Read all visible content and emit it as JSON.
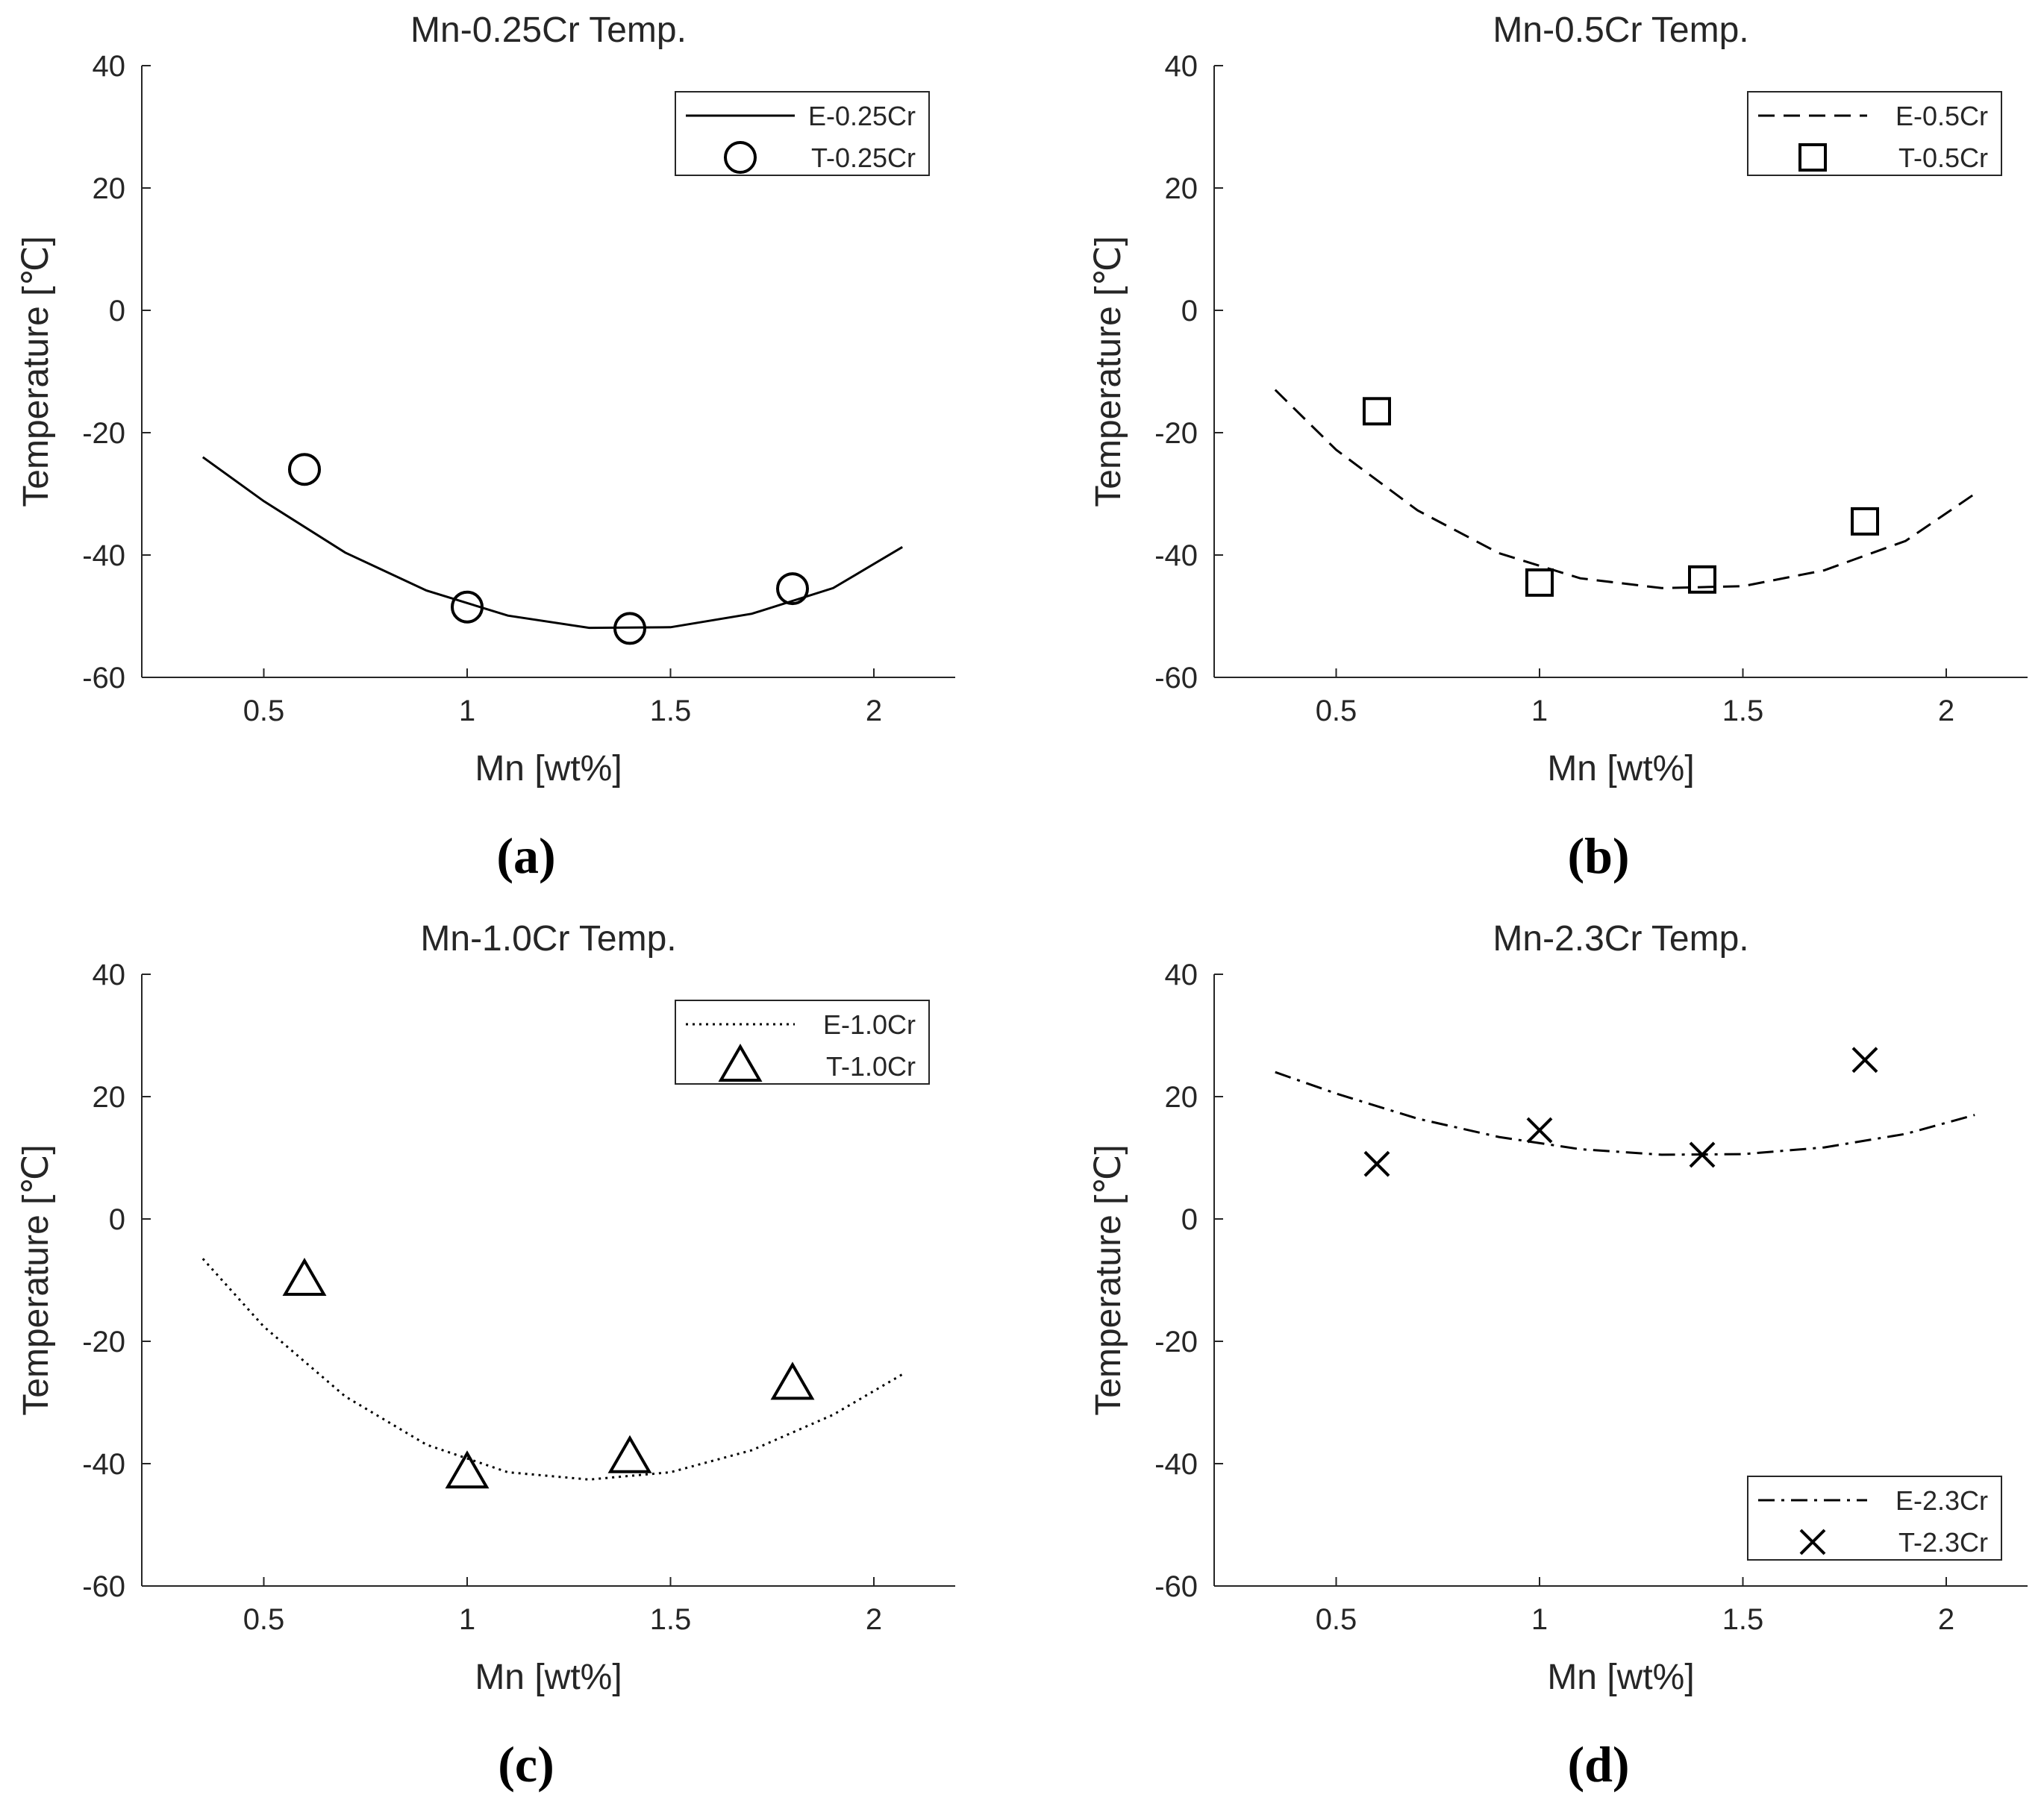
{
  "chart_data": [
    {
      "type": "line",
      "panel_label": "(a)",
      "title": "Mn-0.25Cr Temp.",
      "xlabel": "Mn [wt%]",
      "ylabel": "Temperature [℃]",
      "xlim": [
        0.2,
        2.2
      ],
      "ylim": [
        -60,
        40
      ],
      "xticks": [
        0.5,
        1,
        1.5,
        2
      ],
      "xticklabels": [
        "0.5",
        "1",
        "1.5",
        "2"
      ],
      "yticks": [
        -60,
        -40,
        -20,
        0,
        20,
        40
      ],
      "yticklabels": [
        "-60",
        "-40",
        "-20",
        "0",
        "20",
        "40"
      ],
      "legend_position": "top-right",
      "series": [
        {
          "name": "E-0.25Cr",
          "kind": "line",
          "style": "solid",
          "color": "#000000",
          "x": [
            0.35,
            0.5,
            0.7,
            0.9,
            1.1,
            1.3,
            1.5,
            1.7,
            1.9,
            2.07
          ],
          "y": [
            -24,
            -31.2,
            -39.6,
            -45.8,
            -49.9,
            -51.9,
            -51.8,
            -49.6,
            -45.4,
            -38.7
          ]
        },
        {
          "name": "T-0.25Cr",
          "kind": "marker",
          "marker": "circle",
          "color": "#000000",
          "x": [
            0.6,
            1.0,
            1.4,
            1.8
          ],
          "y": [
            -26,
            -48.5,
            -52,
            -45.5
          ]
        }
      ]
    },
    {
      "type": "line",
      "panel_label": "(b)",
      "title": "Mn-0.5Cr Temp.",
      "xlabel": "Mn [wt%]",
      "ylabel": "Temperature [℃]",
      "xlim": [
        0.2,
        2.2
      ],
      "ylim": [
        -60,
        40
      ],
      "xticks": [
        0.5,
        1,
        1.5,
        2
      ],
      "xticklabels": [
        "0.5",
        "1",
        "1.5",
        "2"
      ],
      "yticks": [
        -60,
        -40,
        -20,
        0,
        20,
        40
      ],
      "yticklabels": [
        "-60",
        "-40",
        "-20",
        "0",
        "20",
        "40"
      ],
      "legend_position": "top-right",
      "series": [
        {
          "name": "E-0.5Cr",
          "kind": "line",
          "style": "dashed",
          "color": "#000000",
          "x": [
            0.35,
            0.5,
            0.7,
            0.9,
            1.1,
            1.3,
            1.5,
            1.7,
            1.9,
            2.07
          ],
          "y": [
            -13,
            -22.8,
            -32.7,
            -39.7,
            -43.8,
            -45.4,
            -45.1,
            -42.5,
            -37.7,
            -30
          ]
        },
        {
          "name": "T-0.5Cr",
          "kind": "marker",
          "marker": "square",
          "color": "#000000",
          "x": [
            0.6,
            1.0,
            1.4,
            1.8
          ],
          "y": [
            -16.5,
            -44.5,
            -44,
            -34.5
          ]
        }
      ]
    },
    {
      "type": "line",
      "panel_label": "(c)",
      "title": "Mn-1.0Cr Temp.",
      "xlabel": "Mn [wt%]",
      "ylabel": "Temperature [℃]",
      "xlim": [
        0.2,
        2.2
      ],
      "ylim": [
        -60,
        40
      ],
      "xticks": [
        0.5,
        1,
        1.5,
        2
      ],
      "xticklabels": [
        "0.5",
        "1",
        "1.5",
        "2"
      ],
      "yticks": [
        -60,
        -40,
        -20,
        0,
        20,
        40
      ],
      "yticklabels": [
        "-60",
        "-40",
        "-20",
        "0",
        "20",
        "40"
      ],
      "legend_position": "top-right",
      "series": [
        {
          "name": "E-1.0Cr",
          "kind": "line",
          "style": "dotted",
          "color": "#000000",
          "x": [
            0.35,
            0.5,
            0.7,
            0.9,
            1.1,
            1.3,
            1.5,
            1.7,
            1.9,
            2.07
          ],
          "y": [
            -6.5,
            -17.6,
            -29,
            -36.9,
            -41.4,
            -42.6,
            -41.4,
            -37.8,
            -32,
            -25.4
          ]
        },
        {
          "name": "T-1.0Cr",
          "kind": "marker",
          "marker": "triangle",
          "color": "#000000",
          "x": [
            0.6,
            1.0,
            1.4,
            1.8
          ],
          "y": [
            -10,
            -41.5,
            -39,
            -27
          ]
        }
      ]
    },
    {
      "type": "line",
      "panel_label": "(d)",
      "title": "Mn-2.3Cr Temp.",
      "xlabel": "Mn [wt%]",
      "ylabel": "Temperature [℃]",
      "xlim": [
        0.2,
        2.2
      ],
      "ylim": [
        -60,
        40
      ],
      "xticks": [
        0.5,
        1,
        1.5,
        2
      ],
      "xticklabels": [
        "0.5",
        "1",
        "1.5",
        "2"
      ],
      "yticks": [
        -60,
        -40,
        -20,
        0,
        20,
        40
      ],
      "yticklabels": [
        "-60",
        "-40",
        "-20",
        "0",
        "20",
        "40"
      ],
      "legend_position": "bottom-right",
      "series": [
        {
          "name": "E-2.3Cr",
          "kind": "line",
          "style": "dashdot",
          "color": "#000000",
          "x": [
            0.35,
            0.5,
            0.7,
            0.9,
            1.1,
            1.3,
            1.5,
            1.7,
            1.9,
            2.07
          ],
          "y": [
            24,
            20.5,
            16.4,
            13.4,
            11.4,
            10.5,
            10.6,
            11.7,
            13.9,
            17
          ]
        },
        {
          "name": "T-2.3Cr",
          "kind": "marker",
          "marker": "x",
          "color": "#000000",
          "x": [
            0.6,
            1.0,
            1.4,
            1.8
          ],
          "y": [
            9,
            14.5,
            10.5,
            26
          ]
        }
      ]
    }
  ]
}
